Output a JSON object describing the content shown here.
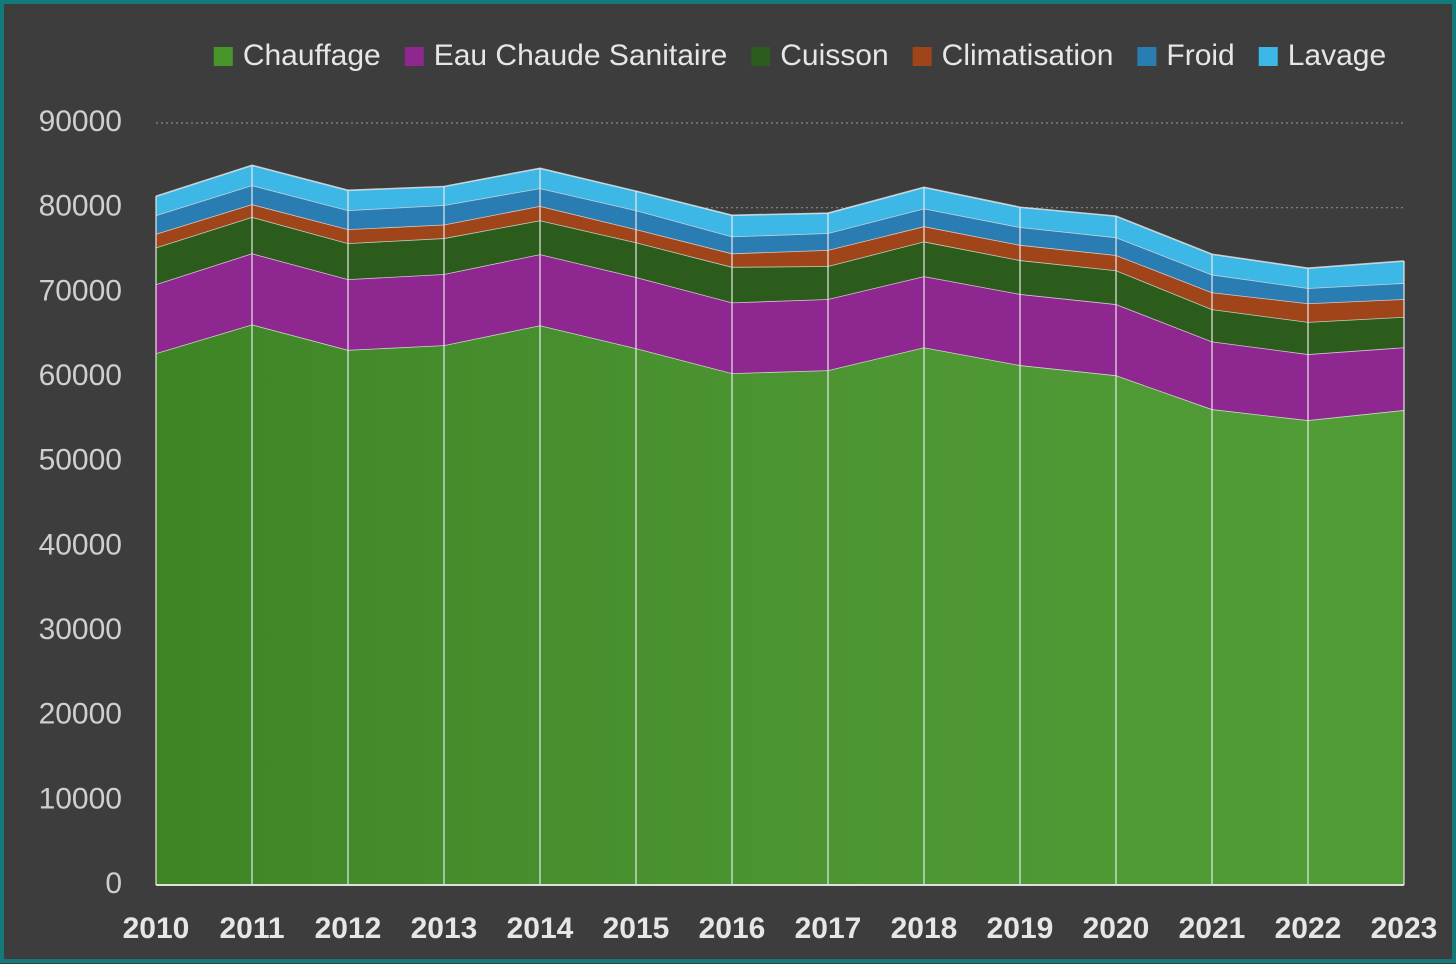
{
  "chart_data": {
    "type": "stacked_area",
    "categories": [
      "2010",
      "2011",
      "2012",
      "2013",
      "2014",
      "2015",
      "2016",
      "2017",
      "2018",
      "2019",
      "2020",
      "2021",
      "2022",
      "2023"
    ],
    "series": [
      {
        "name": "Chauffage",
        "color": "#46962a",
        "values": [
          62800,
          66200,
          63200,
          63750,
          66100,
          63400,
          60450,
          60800,
          63500,
          61400,
          60200,
          56200,
          54900,
          56100
        ]
      },
      {
        "name": "Eau Chaude Sanitaire",
        "color": "#8e2790",
        "values": [
          8150,
          8400,
          8350,
          8400,
          8400,
          8400,
          8350,
          8400,
          8400,
          8400,
          8400,
          8000,
          7800,
          7400
        ]
      },
      {
        "name": "Cuisson",
        "color": "#2c5c1b",
        "values": [
          4350,
          4300,
          4250,
          4250,
          4000,
          4100,
          4200,
          3900,
          4100,
          4000,
          4000,
          3800,
          3800,
          3600
        ]
      },
      {
        "name": "Climatisation",
        "color": "#a0441a",
        "values": [
          1600,
          1500,
          1650,
          1600,
          1700,
          1550,
          1600,
          1900,
          1800,
          1800,
          1800,
          2000,
          2200,
          2100
        ]
      },
      {
        "name": "Froid",
        "color": "#2a7db3",
        "values": [
          2200,
          2250,
          2250,
          2300,
          2100,
          2250,
          2000,
          2000,
          2100,
          2100,
          2100,
          2100,
          1800,
          1900
        ]
      },
      {
        "name": "Lavage",
        "color": "#3cb7e6",
        "values": [
          2250,
          2350,
          2350,
          2200,
          2350,
          2250,
          2500,
          2350,
          2500,
          2350,
          2500,
          2400,
          2350,
          2600
        ]
      }
    ],
    "ylim": [
      0,
      90000
    ],
    "yticks": [
      0,
      10000,
      20000,
      30000,
      40000,
      50000,
      60000,
      70000,
      80000,
      90000
    ],
    "grid": true,
    "legend": "top"
  }
}
